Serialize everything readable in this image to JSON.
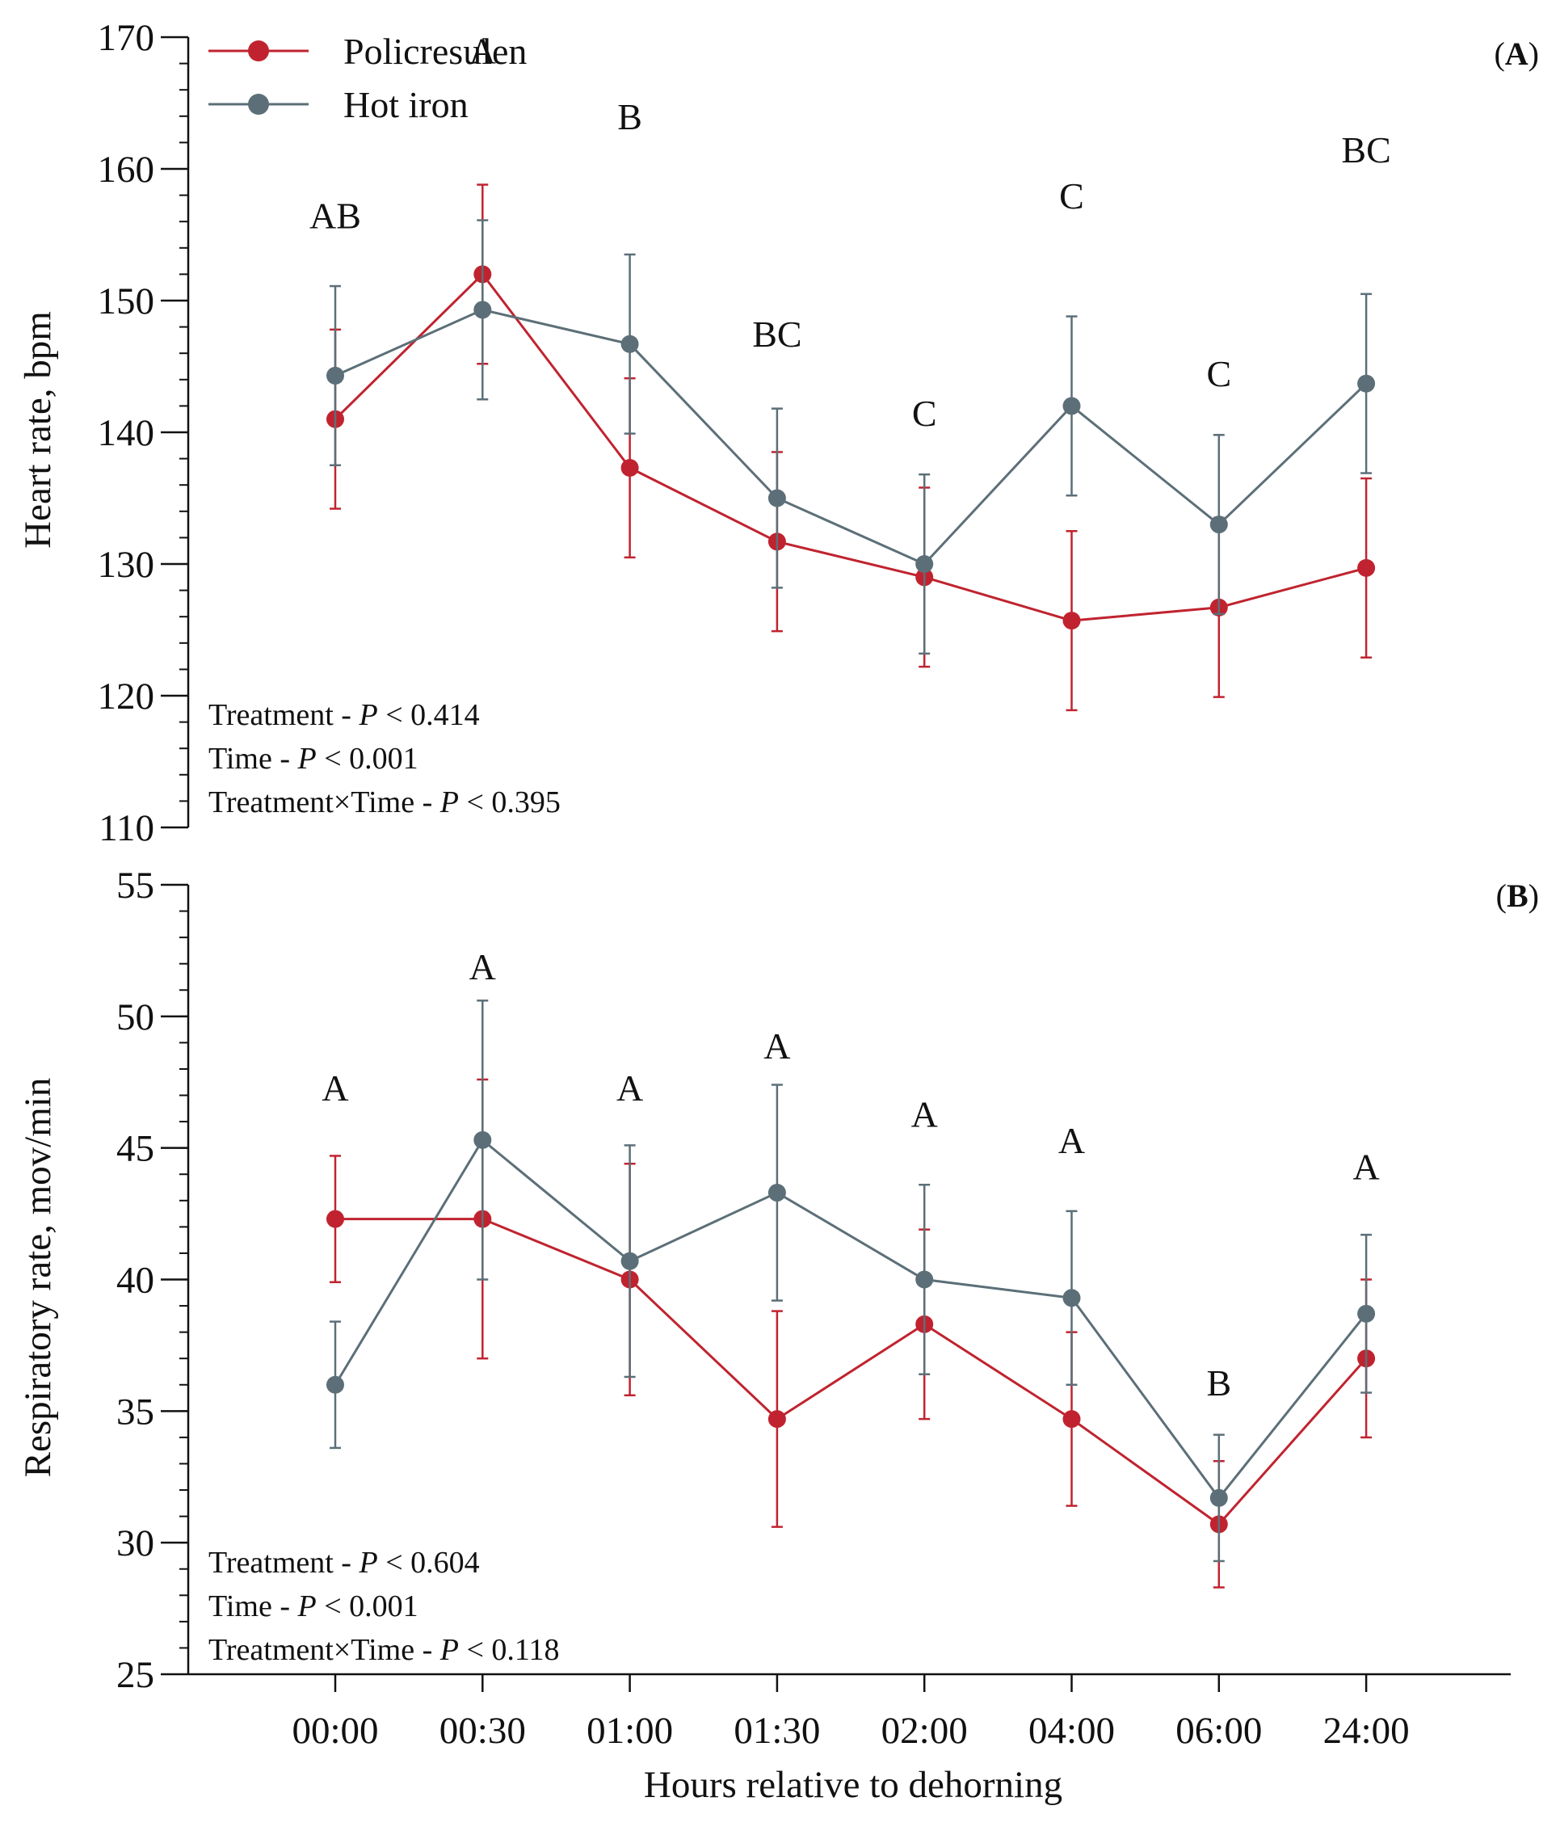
{
  "legend": [
    {
      "name": "Policresulen",
      "color": "#c0232f"
    },
    {
      "name": "Hot iron",
      "color": "#5c6f78"
    }
  ],
  "xlabel": "Hours relative to dehorning",
  "chart_data": [
    {
      "type": "line",
      "panel": "(A)",
      "panel_letter": "A",
      "ylabel": "Heart rate, bpm",
      "ylim": [
        110,
        170
      ],
      "yticks": [
        110,
        120,
        130,
        140,
        150,
        160,
        170
      ],
      "minor_step": 2,
      "categories": [
        "00:00",
        "00:30",
        "01:00",
        "01:30",
        "02:00",
        "04:00",
        "06:00",
        "24:00"
      ],
      "series": [
        {
          "name": "Policresulen",
          "color": "#c0232f",
          "values": [
            141.0,
            152.0,
            137.3,
            131.7,
            129.0,
            125.7,
            126.7,
            129.7
          ],
          "errors": [
            6.8,
            6.8,
            6.8,
            6.8,
            6.8,
            6.8,
            6.8,
            6.8
          ]
        },
        {
          "name": "Hot iron",
          "color": "#5c6f78",
          "values": [
            144.3,
            149.3,
            146.7,
            135.0,
            130.0,
            142.0,
            133.0,
            143.7
          ],
          "errors": [
            6.8,
            6.8,
            6.8,
            6.8,
            6.8,
            6.8,
            6.8,
            6.8
          ]
        }
      ],
      "letters": [
        "AB",
        "A",
        "B",
        "BC",
        "C",
        "C",
        "C",
        "BC"
      ],
      "letter_values": [
        155.5,
        168.0,
        163.0,
        146.5,
        140.5,
        157.0,
        143.5,
        160.5
      ],
      "stats": [
        {
          "label": "Treatment - ",
          "p": "P",
          "rest": " < 0.414"
        },
        {
          "label": "Time - ",
          "p": "P",
          "rest": " < 0.001"
        },
        {
          "label": "Treatment×Time - ",
          "p": "P",
          "rest": " < 0.395"
        }
      ]
    },
    {
      "type": "line",
      "panel": "(B)",
      "panel_letter": "B",
      "ylabel": "Respiratory rate, mov/min",
      "ylim": [
        25,
        55
      ],
      "yticks": [
        25,
        30,
        35,
        40,
        45,
        50,
        55
      ],
      "minor_step": 1,
      "categories": [
        "00:00",
        "00:30",
        "01:00",
        "01:30",
        "02:00",
        "04:00",
        "06:00",
        "24:00"
      ],
      "series": [
        {
          "name": "Policresulen",
          "color": "#c0232f",
          "values": [
            42.3,
            42.3,
            40.0,
            34.7,
            38.3,
            34.7,
            30.7,
            37.0
          ],
          "errors": [
            2.4,
            5.3,
            4.4,
            4.1,
            3.6,
            3.3,
            2.4,
            3.0
          ]
        },
        {
          "name": "Hot iron",
          "color": "#5c6f78",
          "values": [
            36.0,
            45.3,
            40.7,
            43.3,
            40.0,
            39.3,
            31.7,
            38.7
          ],
          "errors": [
            2.4,
            5.3,
            4.4,
            4.1,
            3.6,
            3.3,
            2.4,
            3.0
          ]
        }
      ],
      "letters": [
        "A",
        "A",
        "A",
        "A",
        "A",
        "A",
        "B",
        "A"
      ],
      "letter_values": [
        46.8,
        51.4,
        46.8,
        48.4,
        45.8,
        44.8,
        35.6,
        43.8
      ],
      "stats": [
        {
          "label": "Treatment - ",
          "p": "P",
          "rest": " < 0.604"
        },
        {
          "label": "Time - ",
          "p": "P",
          "rest": " < 0.001"
        },
        {
          "label": "Treatment×Time - ",
          "p": "P",
          "rest": " < 0.118"
        }
      ]
    }
  ]
}
